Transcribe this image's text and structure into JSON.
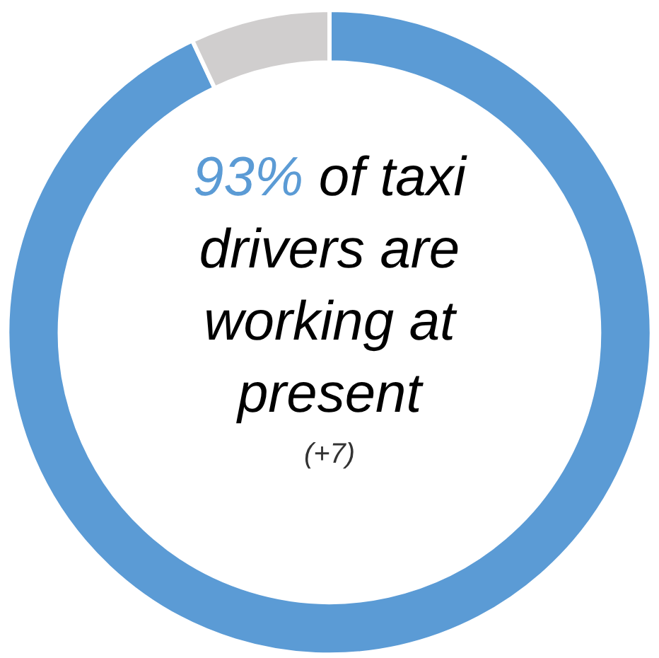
{
  "chart_data": {
    "type": "donut",
    "title": "of taxi drivers are working at present",
    "annotations": [
      "(+7)"
    ],
    "categories": [
      null,
      null
    ],
    "values": [
      93,
      7
    ],
    "colors": [
      "#5b9bd5",
      "#d0cece"
    ],
    "value_labels": [
      "93%",
      null
    ]
  }
}
